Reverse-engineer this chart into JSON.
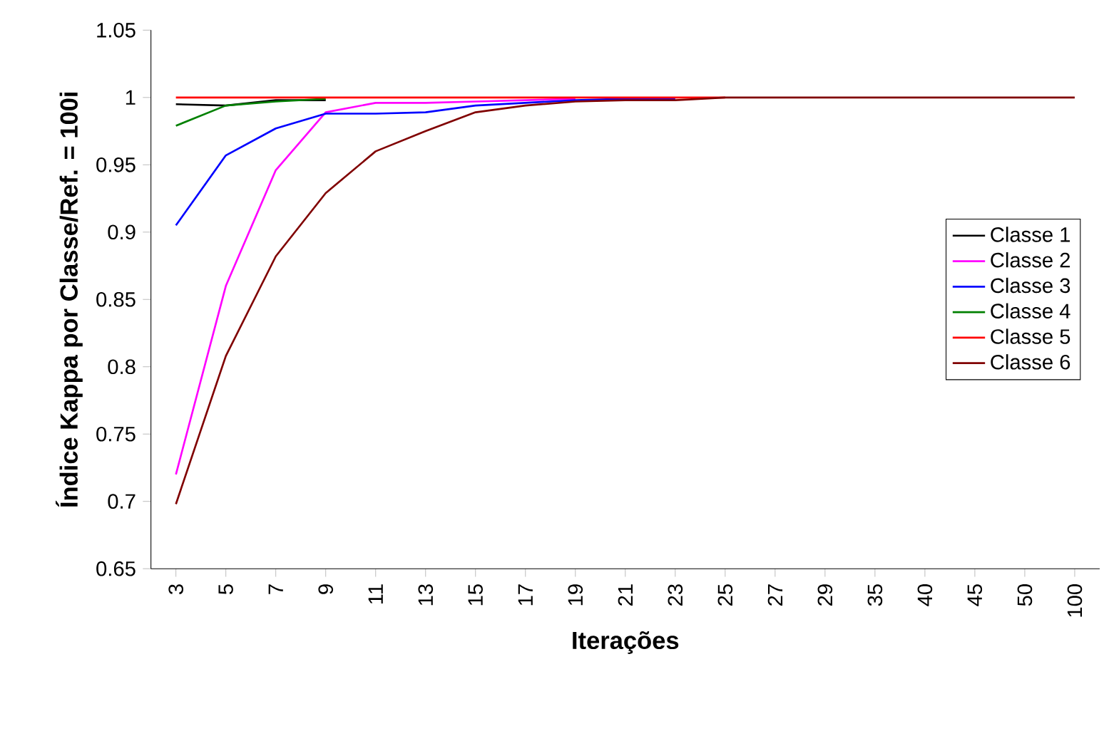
{
  "chart_data": {
    "type": "line",
    "xlabel": "Iterações",
    "ylabel": "Índice Kappa por Classe/Ref. = 100i",
    "categories": [
      "3",
      "5",
      "7",
      "9",
      "11",
      "13",
      "15",
      "17",
      "19",
      "21",
      "23",
      "25",
      "27",
      "29",
      "35",
      "40",
      "45",
      "50",
      "100"
    ],
    "series": [
      {
        "name": "Classe 1",
        "color": "#000000",
        "values": [
          0.995,
          0.994,
          0.998,
          0.998,
          null,
          null,
          null,
          null,
          null,
          null,
          null,
          null,
          null,
          null,
          null,
          null,
          null,
          null,
          null
        ]
      },
      {
        "name": "Classe 2",
        "color": "#ff00ff",
        "values": [
          0.72,
          0.86,
          0.946,
          0.989,
          0.996,
          0.996,
          0.997,
          0.998,
          0.999,
          null,
          null,
          null,
          null,
          null,
          null,
          null,
          null,
          null,
          null
        ]
      },
      {
        "name": "Classe 3",
        "color": "#0000ff",
        "values": [
          0.905,
          0.957,
          0.977,
          0.988,
          0.988,
          0.989,
          0.994,
          0.996,
          0.998,
          0.999,
          0.999,
          null,
          null,
          null,
          null,
          null,
          null,
          null,
          null
        ]
      },
      {
        "name": "Classe 4",
        "color": "#008000",
        "values": [
          0.979,
          0.994,
          0.997,
          0.999,
          null,
          null,
          null,
          null,
          null,
          null,
          null,
          null,
          null,
          null,
          null,
          null,
          null,
          null,
          null
        ]
      },
      {
        "name": "Classe 5",
        "color": "#ff0000",
        "values": [
          1,
          1,
          1,
          1,
          1,
          1,
          1,
          1,
          1,
          1,
          1,
          1,
          null,
          null,
          null,
          null,
          null,
          null,
          null
        ]
      },
      {
        "name": "Classe 6",
        "color": "#800000",
        "values": [
          0.698,
          0.808,
          0.882,
          0.929,
          0.96,
          0.975,
          0.989,
          0.994,
          0.997,
          0.998,
          0.998,
          1,
          1,
          1,
          1,
          1,
          1,
          1,
          1
        ]
      }
    ],
    "ylim": [
      0.65,
      1.05
    ],
    "yticks": [
      0.65,
      0.7,
      0.75,
      0.8,
      0.85,
      0.9,
      0.95,
      1,
      1.05
    ],
    "grid": false,
    "legend": "right",
    "marker": "none",
    "line_style": "solid"
  }
}
